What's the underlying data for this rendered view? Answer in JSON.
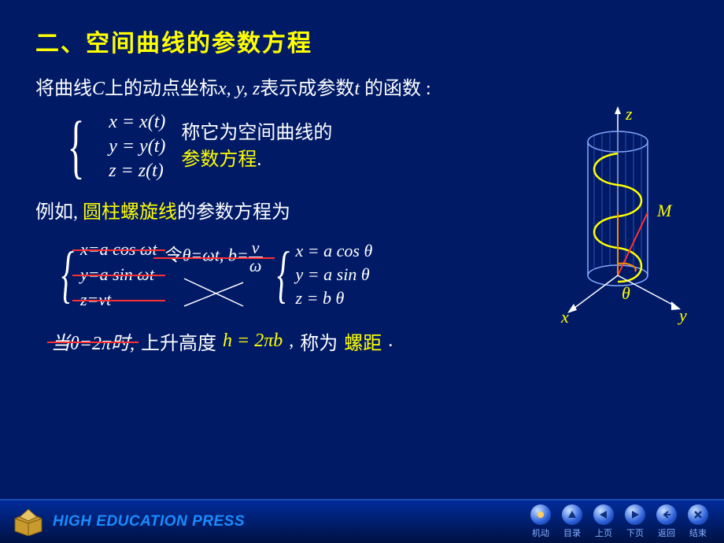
{
  "title": "二、空间曲线的参数方程",
  "intro": {
    "pre": "将曲线",
    "C": "C",
    "mid1": "上的动点坐标",
    "vars": "x, y, z",
    "mid2": "表示成参数",
    "t": "t",
    "mid3": " 的函数 :"
  },
  "param_eq": {
    "x": "x = x(t)",
    "y": "y = y(t)",
    "z": "z = z(t)"
  },
  "desc": {
    "l1": "称它为空间曲线的",
    "l2": "参数方程",
    "dot": "."
  },
  "example_intro": {
    "pre": "例如, ",
    "name": "圆柱螺旋线",
    "post": "的参数方程为"
  },
  "helix_orig": {
    "x": "x=a cos ωt",
    "y": "y=a sin ωt",
    "z": "z=vt"
  },
  "subst": {
    "let": "令",
    "th": "θ=ωt, b=",
    "num": "v",
    "den": "ω"
  },
  "helix_theta": {
    "x": "x = a cos θ",
    "y": "y = a sin θ",
    "z": "z = b θ"
  },
  "pitch": {
    "when": "当θ=2π时,",
    "rise": "上升高度",
    "h": "h = 2πb",
    "comma": ",",
    "called": "称为",
    "name": "螺距",
    "dot2": " ."
  },
  "diagram": {
    "axis_x": "x",
    "axis_y": "y",
    "axis_z": "z",
    "M": "M",
    "theta": "θ",
    "colors": {
      "cylinder_stroke": "#88aaff",
      "helix": "#ffff00",
      "axis": "#ff8800",
      "angle": "#ff8800",
      "radius": "#ff3333"
    }
  },
  "footer": {
    "brand": "HIGH EDUCATION PRESS",
    "nav": [
      {
        "label": "机动",
        "shape": "circle"
      },
      {
        "label": "目录",
        "shape": "triangle-up"
      },
      {
        "label": "上页",
        "shape": "triangle-left"
      },
      {
        "label": "下页",
        "shape": "triangle-right"
      },
      {
        "label": "返回",
        "shape": "arrow-back"
      },
      {
        "label": "结束",
        "shape": "x"
      }
    ]
  },
  "colors": {
    "bg": "#001a66",
    "accent": "#ffff00",
    "text": "#ffffff",
    "strike": "#ff3030",
    "footer_grad_top": "#002b99",
    "footer_grad_bot": "#001244"
  }
}
